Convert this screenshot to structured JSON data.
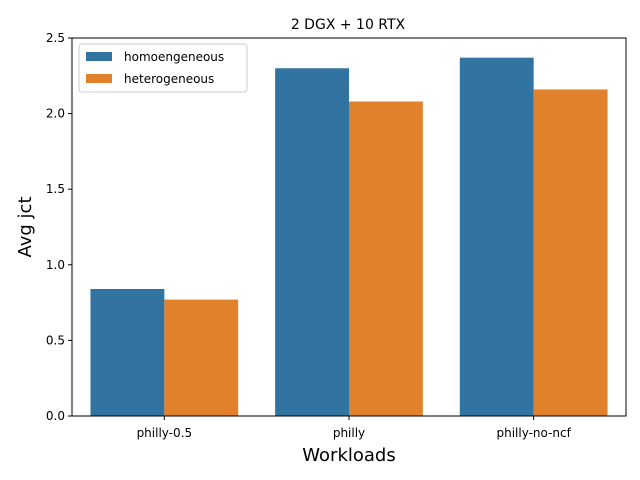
{
  "chart_data": {
    "type": "bar",
    "title": "2 DGX + 10 RTX",
    "xlabel": "Workloads",
    "ylabel": "Avg jct",
    "categories": [
      "philly-0.5",
      "philly",
      "philly-no-ncf"
    ],
    "series": [
      {
        "name": "homoengeneous",
        "values": [
          0.84,
          2.3,
          2.37
        ],
        "color": "#3274a1"
      },
      {
        "name": "heterogeneous",
        "values": [
          0.77,
          2.08,
          2.16
        ],
        "color": "#e1812c"
      }
    ],
    "ylim": [
      0,
      2.5
    ],
    "yticks": [
      "0.0",
      "0.5",
      "1.0",
      "1.5",
      "2.0",
      "2.5"
    ],
    "grid": false,
    "legend_position": "top-left"
  }
}
